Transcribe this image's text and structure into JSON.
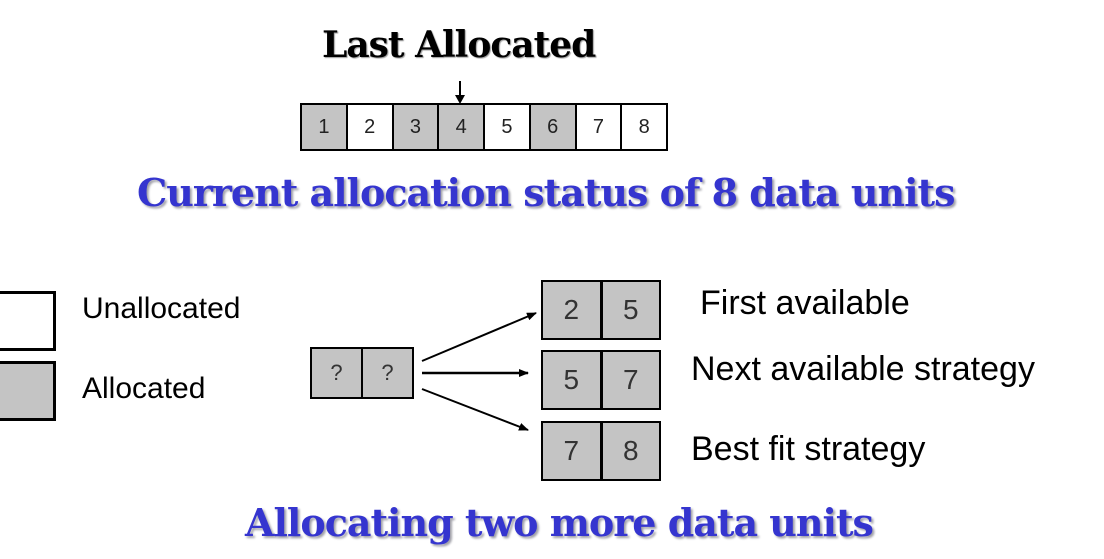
{
  "header": {
    "last_allocated_label": "Last Allocated",
    "status_title": "Current allocation status of 8 data units"
  },
  "units": [
    {
      "label": "1",
      "state": "allocated"
    },
    {
      "label": "2",
      "state": "unallocated"
    },
    {
      "label": "3",
      "state": "allocated"
    },
    {
      "label": "4",
      "state": "allocated"
    },
    {
      "label": "5",
      "state": "unallocated"
    },
    {
      "label": "6",
      "state": "allocated"
    },
    {
      "label": "7",
      "state": "unallocated"
    },
    {
      "label": "8",
      "state": "unallocated"
    }
  ],
  "legend": {
    "unallocated_label": "Unallocated",
    "allocated_label": "Allocated"
  },
  "request": {
    "cells": [
      "?",
      "?"
    ]
  },
  "results": {
    "first": {
      "cells": [
        "2",
        "5"
      ],
      "label": "First available"
    },
    "next": {
      "cells": [
        "5",
        "7"
      ],
      "label": "Next available strategy"
    },
    "best": {
      "cells": [
        "7",
        "8"
      ],
      "label": "Best fit strategy"
    }
  },
  "footer": {
    "title": "Allocating two more data units"
  },
  "colors": {
    "allocated": "#c4c4c4",
    "unallocated": "#ffffff",
    "title_blue": "#3535cf"
  }
}
